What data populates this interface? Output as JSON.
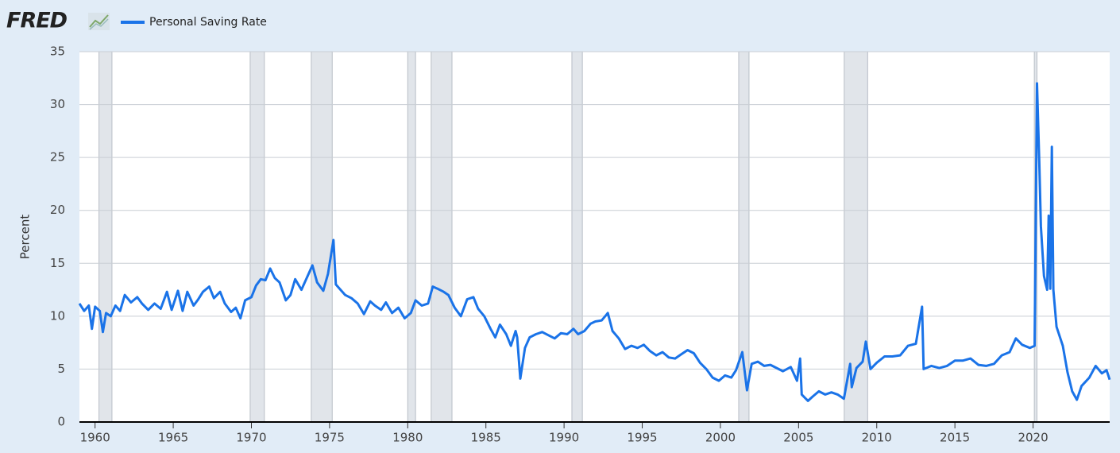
{
  "logo": "FRED",
  "chart_data": {
    "type": "line",
    "y_label": "Percent",
    "xlim": [
      1959,
      2024.9
    ],
    "ylim": [
      0,
      35
    ],
    "xticks": [
      1960,
      1965,
      1970,
      1975,
      1980,
      1985,
      1990,
      1995,
      2000,
      2005,
      2010,
      2015,
      2020
    ],
    "yticks": [
      0,
      5,
      10,
      15,
      20,
      25,
      30,
      35
    ],
    "grid": true,
    "recessions": [
      [
        1960.25,
        1961.08
      ],
      [
        1969.92,
        1970.83
      ],
      [
        1973.83,
        1975.17
      ],
      [
        1980.0,
        1980.5
      ],
      [
        1981.5,
        1982.83
      ],
      [
        1990.5,
        1991.17
      ],
      [
        2001.17,
        2001.83
      ],
      [
        2007.92,
        2009.42
      ],
      [
        2020.08,
        2020.25
      ]
    ],
    "recession_color": "#e1e5ea",
    "series": [
      {
        "name": "Personal Saving Rate",
        "color": "#1a73e8",
        "x": [
          1959.0,
          1959.3,
          1959.6,
          1959.8,
          1960.0,
          1960.3,
          1960.5,
          1960.7,
          1961.0,
          1961.3,
          1961.6,
          1961.9,
          1962.3,
          1962.7,
          1963.0,
          1963.4,
          1963.8,
          1964.2,
          1964.6,
          1964.9,
          1965.3,
          1965.6,
          1965.9,
          1966.3,
          1966.6,
          1966.9,
          1967.3,
          1967.6,
          1968.0,
          1968.3,
          1968.7,
          1969.0,
          1969.3,
          1969.6,
          1970.0,
          1970.3,
          1970.6,
          1970.9,
          1971.2,
          1971.5,
          1971.8,
          1972.2,
          1972.5,
          1972.8,
          1973.2,
          1973.6,
          1973.9,
          1974.2,
          1974.6,
          1974.9,
          1975.25,
          1975.4,
          1975.7,
          1976.0,
          1976.4,
          1976.8,
          1977.2,
          1977.6,
          1977.9,
          1978.3,
          1978.6,
          1979.0,
          1979.4,
          1979.8,
          1980.2,
          1980.5,
          1980.9,
          1981.3,
          1981.6,
          1981.9,
          1982.3,
          1982.6,
          1983.0,
          1983.4,
          1983.8,
          1984.2,
          1984.5,
          1984.9,
          1985.3,
          1985.6,
          1985.9,
          1986.3,
          1986.6,
          1986.9,
          1987.0,
          1987.2,
          1987.5,
          1987.8,
          1988.2,
          1988.6,
          1989.0,
          1989.4,
          1989.8,
          1990.2,
          1990.6,
          1990.9,
          1991.3,
          1991.7,
          1992.0,
          1992.4,
          1992.8,
          1993.1,
          1993.5,
          1993.9,
          1994.3,
          1994.7,
          1995.1,
          1995.5,
          1995.9,
          1996.3,
          1996.7,
          1997.1,
          1997.5,
          1997.9,
          1998.3,
          1998.7,
          1999.1,
          1999.5,
          1999.9,
          2000.3,
          2000.7,
          2001.0,
          2001.4,
          2001.7,
          2002.0,
          2002.4,
          2002.8,
          2003.2,
          2003.6,
          2004.0,
          2004.5,
          2004.9,
          2005.1,
          2005.2,
          2005.6,
          2005.9,
          2006.3,
          2006.7,
          2007.1,
          2007.5,
          2007.9,
          2008.3,
          2008.4,
          2008.7,
          2009.1,
          2009.3,
          2009.6,
          2010.0,
          2010.5,
          2011.0,
          2011.5,
          2012.0,
          2012.5,
          2012.9,
          2013.0,
          2013.5,
          2014.0,
          2014.5,
          2015.0,
          2015.5,
          2016.0,
          2016.5,
          2017.0,
          2017.5,
          2018.0,
          2018.5,
          2018.9,
          2019.3,
          2019.8,
          2020.1,
          2020.25,
          2020.4,
          2020.5,
          2020.7,
          2020.9,
          2021.0,
          2021.1,
          2021.2,
          2021.3,
          2021.5,
          2021.9,
          2022.2,
          2022.5,
          2022.8,
          2023.1,
          2023.6,
          2024.0,
          2024.4,
          2024.7,
          2024.9
        ],
        "values": [
          11.2,
          10.5,
          11.0,
          8.8,
          10.9,
          10.5,
          8.5,
          10.3,
          10.0,
          11.0,
          10.5,
          12.0,
          11.3,
          11.8,
          11.2,
          10.6,
          11.2,
          10.7,
          12.3,
          10.6,
          12.4,
          10.5,
          12.3,
          11.0,
          11.6,
          12.3,
          12.8,
          11.7,
          12.3,
          11.2,
          10.4,
          10.8,
          9.8,
          11.5,
          11.8,
          12.9,
          13.5,
          13.4,
          14.5,
          13.6,
          13.2,
          11.5,
          12.0,
          13.5,
          12.5,
          13.8,
          14.8,
          13.2,
          12.4,
          14.0,
          17.2,
          13.0,
          12.5,
          12.0,
          11.7,
          11.2,
          10.2,
          11.4,
          11.0,
          10.6,
          11.3,
          10.3,
          10.8,
          9.8,
          10.3,
          11.5,
          11.0,
          11.2,
          12.8,
          12.6,
          12.3,
          12.0,
          10.8,
          10.0,
          11.6,
          11.8,
          10.7,
          10.0,
          8.8,
          8.0,
          9.2,
          8.3,
          7.2,
          8.6,
          8.0,
          4.1,
          7.0,
          8.0,
          8.3,
          8.5,
          8.2,
          7.9,
          8.4,
          8.3,
          8.8,
          8.3,
          8.6,
          9.3,
          9.5,
          9.6,
          10.3,
          8.6,
          7.9,
          6.9,
          7.2,
          7.0,
          7.3,
          6.7,
          6.3,
          6.6,
          6.1,
          6.0,
          6.4,
          6.8,
          6.5,
          5.6,
          5.0,
          4.2,
          3.9,
          4.4,
          4.2,
          4.9,
          6.6,
          3.0,
          5.5,
          5.7,
          5.3,
          5.4,
          5.1,
          4.8,
          5.2,
          3.9,
          6.0,
          2.6,
          2.0,
          2.4,
          2.9,
          2.6,
          2.8,
          2.6,
          2.2,
          5.5,
          3.3,
          5.1,
          5.7,
          7.6,
          5.0,
          5.6,
          6.2,
          6.2,
          6.3,
          7.2,
          7.4,
          10.9,
          5.0,
          5.3,
          5.1,
          5.3,
          5.8,
          5.8,
          6.0,
          5.4,
          5.3,
          5.5,
          6.3,
          6.6,
          7.9,
          7.3,
          7.0,
          7.2,
          32.0,
          24.5,
          18.5,
          13.8,
          12.5,
          19.5,
          12.6,
          26.0,
          12.5,
          9.0,
          7.2,
          4.7,
          2.9,
          2.1,
          3.4,
          4.2,
          5.3,
          4.6,
          4.9,
          4.0
        ]
      }
    ]
  }
}
